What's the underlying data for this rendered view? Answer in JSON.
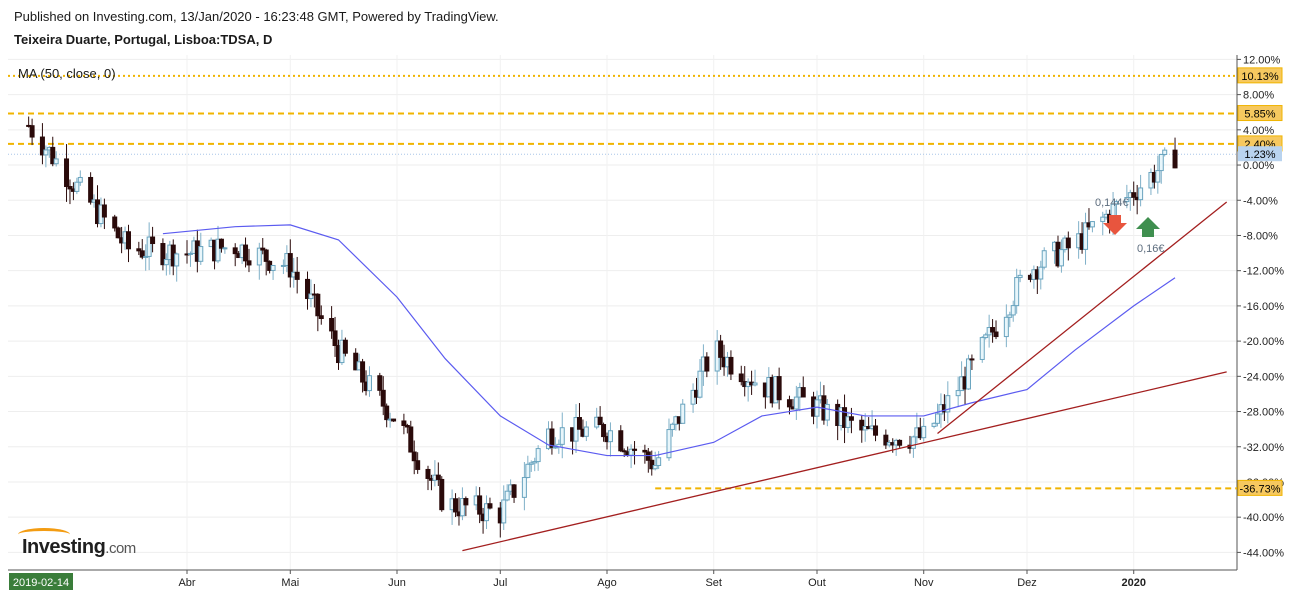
{
  "header": {
    "published": "Published on Investing.com, 13/Jan/2020 - 16:23:48 GMT, Powered by TradingView.",
    "title": "Teixeira Duarte, Portugal, Lisboa:TDSA, D",
    "indicator": "MA (50, close, 0)"
  },
  "branding": {
    "logo_main": "Investing",
    "logo_domain": ".com"
  },
  "chart_data": {
    "type": "candlestick",
    "y_unit": "% change",
    "ylim": [
      -46,
      12.5
    ],
    "y_ticks": [
      "12.00%",
      "8.00%",
      "4.00%",
      "0.00%",
      "-4.00%",
      "-8.00%",
      "-12.00%",
      "-16.00%",
      "-20.00%",
      "-24.00%",
      "-28.00%",
      "-32.00%",
      "-36.00%",
      "-40.00%",
      "-44.00%"
    ],
    "x_start_label": "2019-02-14",
    "x_labels": [
      "Abr",
      "Mai",
      "Jun",
      "Jul",
      "Ago",
      "Set",
      "Out",
      "Nov",
      "Dez",
      "2020"
    ],
    "horizontal_levels": [
      {
        "label": "10.13%",
        "value": 10.13,
        "style": "dotted",
        "color": "#f0b400"
      },
      {
        "label": "5.85%",
        "value": 5.85,
        "style": "dashed",
        "color": "#f0b400"
      },
      {
        "label": "2.40%",
        "value": 2.4,
        "style": "dashed",
        "color": "#f0b400"
      },
      {
        "label": "-36.73%",
        "value": -36.73,
        "style": "dashed",
        "color": "#f0b400"
      }
    ],
    "last_value": {
      "label": "1.23%",
      "value": 1.23
    },
    "annotations": [
      {
        "text": "0,144€",
        "marker": "down-arrow",
        "color": "#e8553e"
      },
      {
        "text": "0,16€",
        "marker": "up-arrow",
        "color": "#3f8f4f"
      }
    ],
    "candles": {
      "x": [
        "2019-02-14",
        "2019-02-28",
        "2019-03-15",
        "2019-04-01",
        "2019-04-15",
        "2019-05-01",
        "2019-05-15",
        "2019-06-01",
        "2019-06-15",
        "2019-07-01",
        "2019-07-15",
        "2019-08-01",
        "2019-08-15",
        "2019-09-01",
        "2019-09-15",
        "2019-10-01",
        "2019-10-15",
        "2019-11-01",
        "2019-11-15",
        "2019-12-01",
        "2019-12-15",
        "2020-01-01",
        "2020-01-13"
      ],
      "close": [
        4.5,
        -2.5,
        -9.5,
        -10.0,
        -9.2,
        -11.5,
        -21.0,
        -29.0,
        -38.5,
        -39.5,
        -30.5,
        -30.0,
        -34.0,
        -21.0,
        -25.0,
        -27.5,
        -30.5,
        -31.0,
        -23.0,
        -12.0,
        -9.0,
        -3.0,
        1.23
      ]
    },
    "ma50": [
      {
        "x": "2019-03-25",
        "y": -7.8
      },
      {
        "x": "2019-04-15",
        "y": -7.0
      },
      {
        "x": "2019-05-01",
        "y": -6.8
      },
      {
        "x": "2019-05-15",
        "y": -8.5
      },
      {
        "x": "2019-06-01",
        "y": -15.0
      },
      {
        "x": "2019-06-15",
        "y": -22.0
      },
      {
        "x": "2019-07-01",
        "y": -28.5
      },
      {
        "x": "2019-07-15",
        "y": -31.8
      },
      {
        "x": "2019-08-01",
        "y": -33.0
      },
      {
        "x": "2019-08-15",
        "y": -33.0
      },
      {
        "x": "2019-09-01",
        "y": -31.5
      },
      {
        "x": "2019-09-15",
        "y": -28.5
      },
      {
        "x": "2019-10-01",
        "y": -27.5
      },
      {
        "x": "2019-10-15",
        "y": -28.5
      },
      {
        "x": "2019-11-01",
        "y": -28.5
      },
      {
        "x": "2019-11-15",
        "y": -27.0
      },
      {
        "x": "2019-12-01",
        "y": -25.5
      },
      {
        "x": "2019-12-15",
        "y": -21.0
      },
      {
        "x": "2020-01-01",
        "y": -16.0
      },
      {
        "x": "2020-01-13",
        "y": -12.8
      }
    ],
    "trendlines": [
      {
        "from": {
          "x": "2019-06-20",
          "y": -43.8
        },
        "to": {
          "x": "2020-01-28",
          "y": -23.5
        },
        "color": "#a31f1f"
      },
      {
        "from": {
          "x": "2019-11-05",
          "y": -30.5
        },
        "to": {
          "x": "2020-01-28",
          "y": -4.2
        },
        "color": "#a31f1f"
      }
    ]
  }
}
